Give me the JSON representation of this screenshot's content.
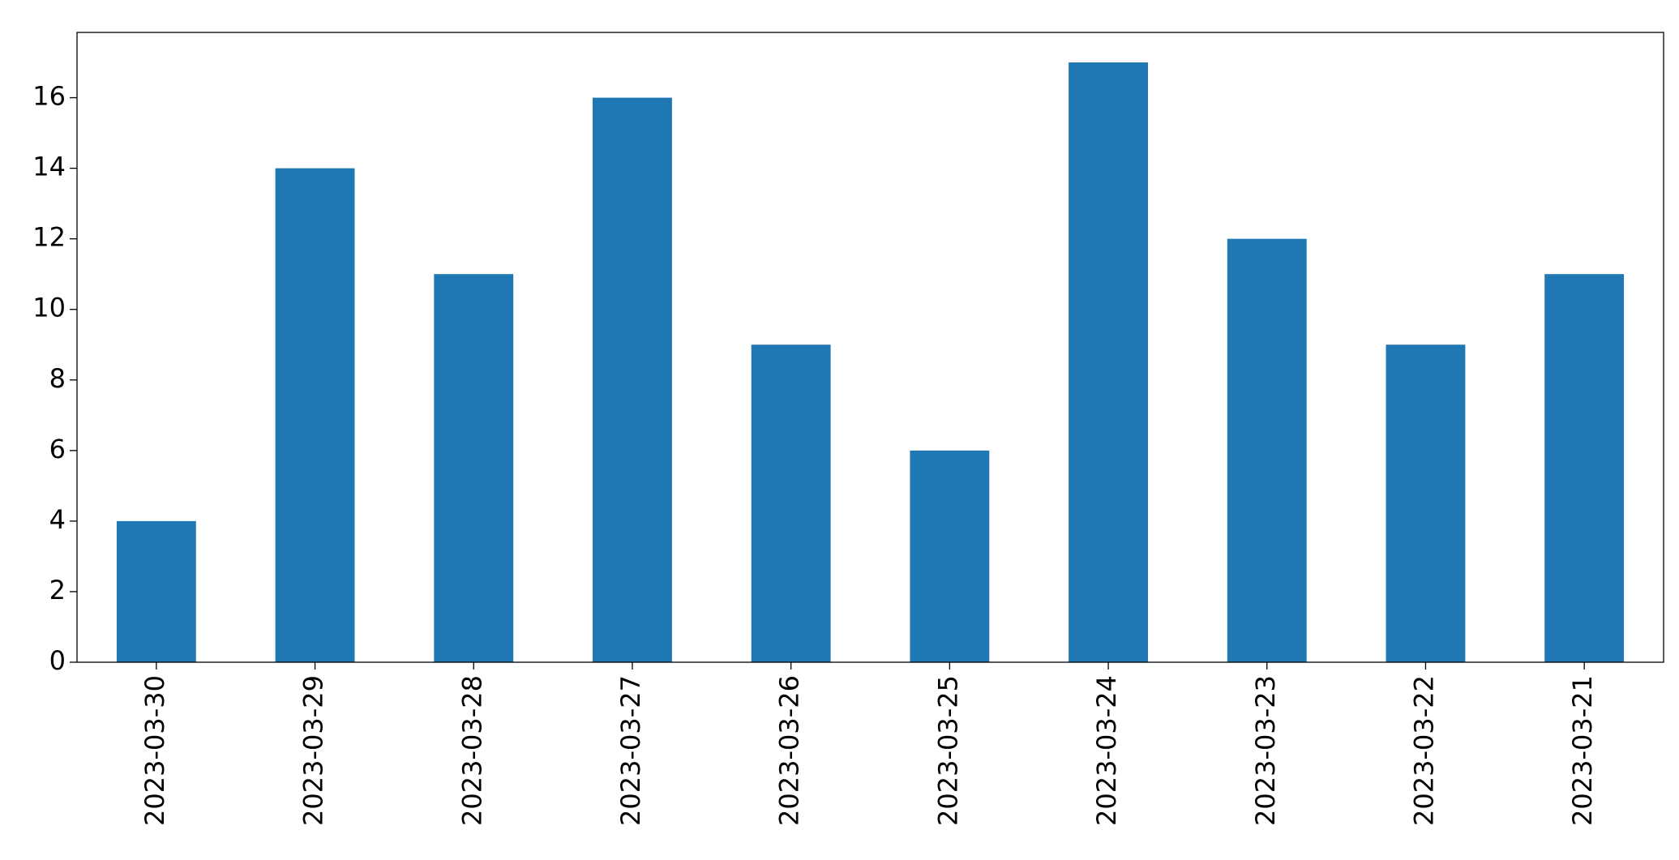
{
  "chart_data": {
    "type": "bar",
    "categories": [
      "2023-03-30",
      "2023-03-29",
      "2023-03-28",
      "2023-03-27",
      "2023-03-26",
      "2023-03-25",
      "2023-03-24",
      "2023-03-23",
      "2023-03-22",
      "2023-03-21"
    ],
    "values": [
      4,
      14,
      11,
      16,
      9,
      6,
      17,
      12,
      9,
      11
    ],
    "color": "#1f77b4",
    "ylim": [
      0,
      17.85
    ],
    "yticks": [
      0,
      2,
      4,
      6,
      8,
      10,
      12,
      14,
      16
    ],
    "grid": false
  }
}
